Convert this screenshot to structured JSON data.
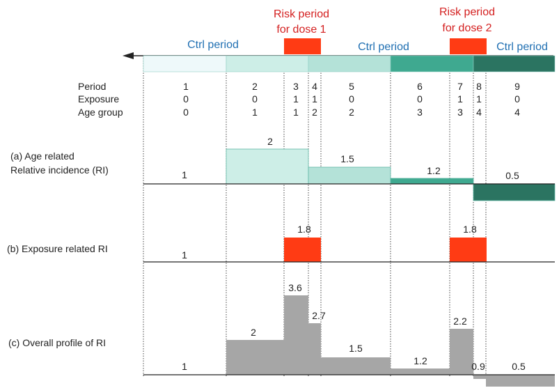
{
  "colors": {
    "ctrl_text": "#1f6fb2",
    "risk_text": "#d42020",
    "risk_fill": "#ff3b14",
    "bar_gray": "#a6a6a6",
    "seg1": "#eef9fa",
    "seg2": "#cdeee7",
    "seg3": "#b4e2d8",
    "seg4": "#3fa990",
    "seg5": "#2b7461"
  },
  "header": {
    "risk1": [
      "Risk period",
      "for dose 1"
    ],
    "risk2": [
      "Risk period",
      "for dose 2"
    ],
    "ctrl": [
      "Ctrl period",
      "Ctrl period",
      "Ctrl period"
    ]
  },
  "table": {
    "row_labels": [
      "Period",
      "Exposure",
      "Age group"
    ],
    "columns": [
      {
        "period": "1",
        "exposure": "0",
        "age": "0"
      },
      {
        "period": "2",
        "exposure": "0",
        "age": "1"
      },
      {
        "period": "3",
        "exposure": "1",
        "age": "1"
      },
      {
        "period": "4",
        "exposure": "1",
        "age": "2"
      },
      {
        "period": "5",
        "exposure": "0",
        "age": "2"
      },
      {
        "period": "6",
        "exposure": "0",
        "age": "3"
      },
      {
        "period": "7",
        "exposure": "1",
        "age": "3"
      },
      {
        "period": "8",
        "exposure": "1",
        "age": "4"
      },
      {
        "period": "9",
        "exposure": "0",
        "age": "4"
      }
    ]
  },
  "panel_a": {
    "label": [
      "(a) Age related",
      "Relative incidence (RI)"
    ],
    "values": [
      "1",
      "2",
      "1.5",
      "1.2",
      "0.5"
    ]
  },
  "panel_b": {
    "label": "(b) Exposure related RI",
    "values": [
      "1",
      "1.8",
      "1.8"
    ]
  },
  "panel_c": {
    "label": "(c) Overall profile of RI",
    "values": [
      "1",
      "2",
      "3.6",
      "2.7",
      "1.5",
      "1.2",
      "2.2",
      "0.9",
      "0.5"
    ]
  }
}
